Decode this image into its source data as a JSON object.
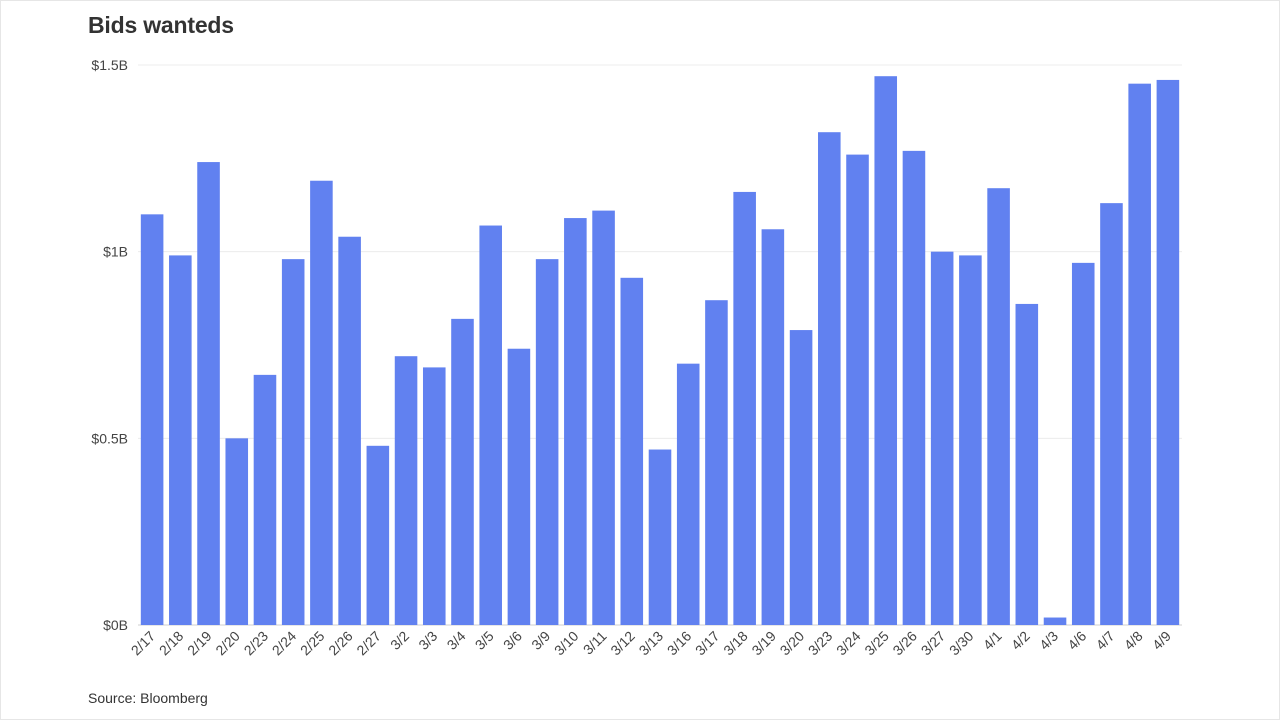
{
  "title": "Bids wanteds",
  "source": "Source: Bloomberg",
  "colors": {
    "bar": "#6181f0",
    "grid": "#ececec",
    "text": "#333333"
  },
  "chart_data": {
    "type": "bar",
    "title": "Bids wanteds",
    "xlabel": "",
    "ylabel": "",
    "ylim": [
      0,
      1.5
    ],
    "y_unit": "$B",
    "yticks": [
      0,
      0.5,
      1,
      1.5
    ],
    "ytick_labels": [
      "$0B",
      "$0.5B",
      "$1B",
      "$1.5B"
    ],
    "grid": true,
    "categories": [
      "2/17",
      "2/18",
      "2/19",
      "2/20",
      "2/23",
      "2/24",
      "2/25",
      "2/26",
      "2/27",
      "3/2",
      "3/3",
      "3/4",
      "3/5",
      "3/6",
      "3/9",
      "3/10",
      "3/11",
      "3/12",
      "3/13",
      "3/16",
      "3/17",
      "3/18",
      "3/19",
      "3/20",
      "3/23",
      "3/24",
      "3/25",
      "3/26",
      "3/27",
      "3/30",
      "4/1",
      "4/2",
      "4/3",
      "4/6",
      "4/7",
      "4/8",
      "4/9"
    ],
    "values": [
      1.1,
      0.99,
      1.24,
      0.5,
      0.67,
      0.98,
      1.19,
      1.04,
      0.48,
      0.72,
      0.69,
      0.82,
      1.07,
      0.74,
      0.98,
      1.09,
      1.11,
      0.93,
      0.47,
      0.7,
      0.87,
      1.16,
      1.06,
      0.79,
      1.32,
      1.26,
      1.47,
      1.27,
      1.0,
      0.99,
      1.17,
      0.86,
      0.02,
      0.97,
      1.13,
      1.45,
      1.46
    ]
  }
}
